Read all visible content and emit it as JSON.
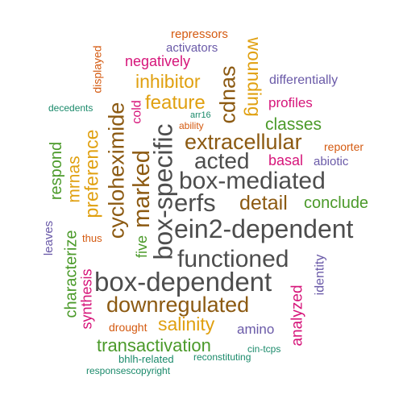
{
  "colors": {
    "dark_gray": "#4d4d4d",
    "brown": "#8c5a12",
    "gold": "#e0a010",
    "green": "#4b9a2a",
    "magenta": "#d6157a",
    "purple": "#6a5aa8",
    "orange": "#d45a10",
    "teal": "#1b8a6b"
  },
  "words": {
    "repressors": "repressors",
    "activators": "activators",
    "displayed": "displayed",
    "negatively": "negatively",
    "wounding": "wounding",
    "differentially": "differentially",
    "inhibitor": "inhibitor",
    "cdnas": "cdnas",
    "profiles": "profiles",
    "decedents": "decedents",
    "cold": "cold",
    "feature": "feature",
    "arr16": "arr16",
    "ability": "ability",
    "classes": "classes",
    "cycloheximide": "cycloheximide",
    "respond": "respond",
    "preference": "preference",
    "mrnas": "mrnas",
    "extracellular": "extracellular",
    "reporter": "reporter",
    "acted": "acted",
    "basal": "basal",
    "abiotic": "abiotic",
    "box_specific": "box-specific",
    "box_mediated": "box-mediated",
    "marked": "marked",
    "erfs": "erfs",
    "detail": "detail",
    "conclude": "conclude",
    "ein2_dependent": "ein2-dependent",
    "leaves": "leaves",
    "thus": "thus",
    "characterize": "characterize",
    "five": "five",
    "functioned": "functioned",
    "identity": "identity",
    "box_dependent": "box-dependent",
    "synthesis": "synthesis",
    "analyzed": "analyzed",
    "downregulated": "downregulated",
    "salinity": "salinity",
    "drought": "drought",
    "amino": "amino",
    "transactivation": "transactivation",
    "bhlh_related": "bhlh-related",
    "reconstituting": "reconstituting",
    "cin_tcps": "cin-tcps",
    "responsescopyright": "responsescopyright"
  }
}
